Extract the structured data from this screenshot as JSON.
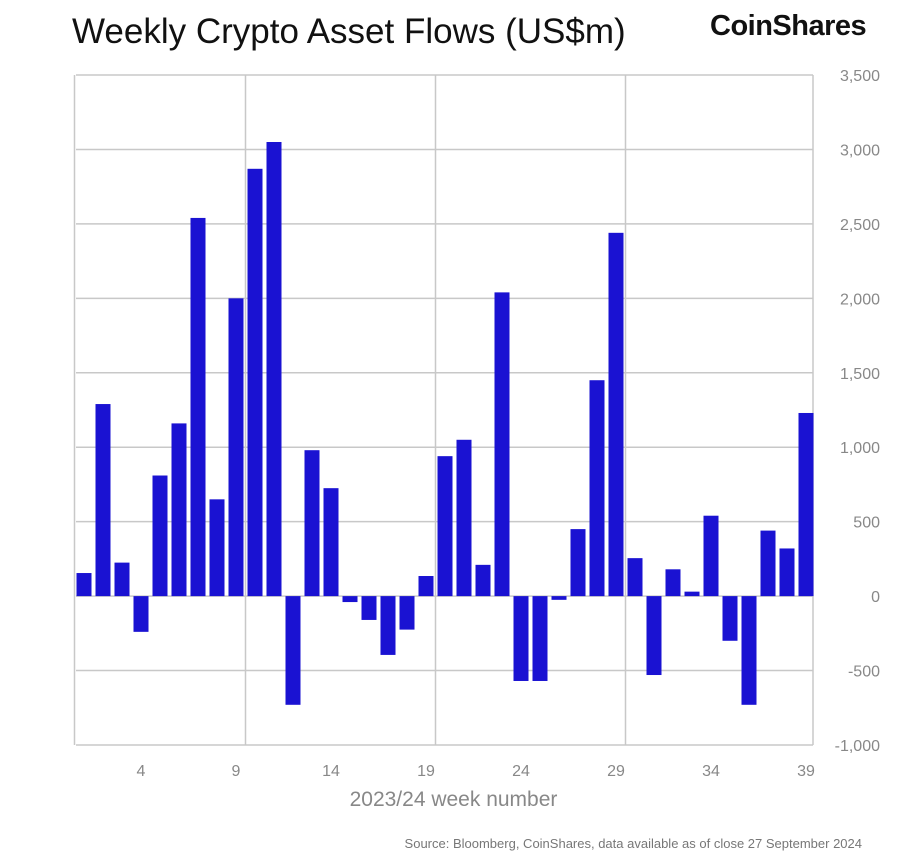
{
  "chart_data": {
    "type": "bar",
    "title": "Weekly Crypto Asset Flows (US$m)",
    "xlabel": "2023/24 week number",
    "ylabel": "",
    "x": [
      1,
      2,
      3,
      4,
      5,
      6,
      7,
      8,
      9,
      10,
      11,
      12,
      13,
      14,
      15,
      16,
      17,
      18,
      19,
      20,
      21,
      22,
      23,
      24,
      25,
      26,
      27,
      28,
      29,
      30,
      31,
      32,
      33,
      34,
      35,
      36,
      37,
      38,
      39
    ],
    "values": [
      155,
      1290,
      225,
      -240,
      810,
      1160,
      2540,
      650,
      2000,
      2870,
      3050,
      -730,
      980,
      725,
      -40,
      -160,
      -395,
      -225,
      135,
      940,
      1050,
      210,
      2040,
      -570,
      -570,
      -25,
      450,
      1450,
      2440,
      255,
      -530,
      180,
      30,
      540,
      -300,
      -730,
      440,
      320,
      1230
    ],
    "xticks": [
      4,
      9,
      14,
      19,
      24,
      29,
      34,
      39
    ],
    "yticks": [
      3500,
      3000,
      2500,
      2000,
      1500,
      1000,
      500,
      0,
      -500,
      -1000
    ],
    "ytick_labels": [
      "3,500",
      "3,000",
      "2,500",
      "2,000",
      "1,500",
      "1,000",
      "500",
      "0",
      "-500",
      "-1,000"
    ],
    "ylim": [
      -1000,
      3500
    ],
    "y_axis_position": "right",
    "grid": true,
    "bar_color": "#1a12d2"
  },
  "logo": "CoinShares",
  "source": "Source: Bloomberg, CoinShares, data available as of close 27 September 2024"
}
